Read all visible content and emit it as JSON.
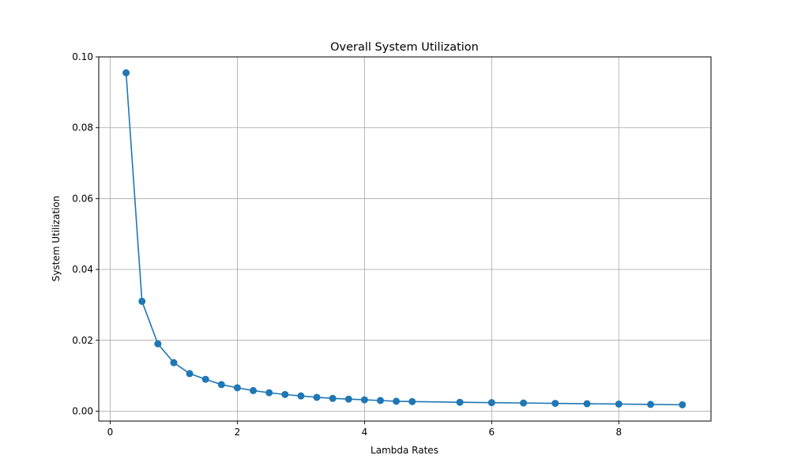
{
  "chart_data": {
    "type": "line",
    "title": "Overall System Utilization",
    "xlabel": "Lambda Rates",
    "ylabel": "System Utilization",
    "xlim": [
      -0.18,
      9.45
    ],
    "ylim": [
      -0.0028,
      0.1
    ],
    "xticks": [
      0,
      2,
      4,
      6,
      8
    ],
    "xtick_labels": [
      "0",
      "2",
      "4",
      "6",
      "8"
    ],
    "yticks": [
      0.0,
      0.02,
      0.04,
      0.06,
      0.08,
      0.1
    ],
    "ytick_labels": [
      "0.00",
      "0.02",
      "0.04",
      "0.06",
      "0.08",
      "0.10"
    ],
    "grid": true,
    "color": "#1f77b4",
    "marker": "circle",
    "series": [
      {
        "x": [
          0.25,
          0.5,
          0.75,
          1.0,
          1.25,
          1.5,
          1.75,
          2.0,
          2.25,
          2.5,
          2.75,
          3.0,
          3.25,
          3.5,
          3.75,
          4.0,
          4.25,
          4.5,
          4.75,
          5.5,
          6.0,
          6.5,
          7.0,
          7.5,
          8.0,
          8.5,
          9.0
        ],
        "y": [
          0.0955,
          0.031,
          0.019,
          0.0137,
          0.0106,
          0.009,
          0.0075,
          0.0066,
          0.0058,
          0.0052,
          0.0047,
          0.0043,
          0.0039,
          0.0036,
          0.0034,
          0.0032,
          0.003,
          0.0028,
          0.0027,
          0.0025,
          0.0024,
          0.0023,
          0.0022,
          0.0021,
          0.002,
          0.0019,
          0.0018
        ]
      }
    ]
  }
}
